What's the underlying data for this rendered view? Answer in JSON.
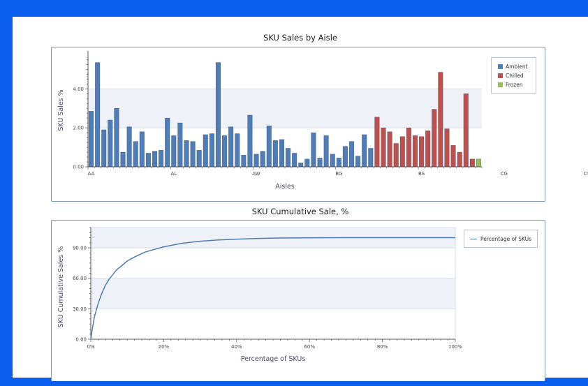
{
  "chart_data": [
    {
      "type": "bar",
      "title": "SKU Sales by Aisle",
      "xlabel": "Aisles",
      "ylabel": "SKU Sales %",
      "ylim": [
        0,
        5.8
      ],
      "y_ticks": [
        0,
        2,
        4
      ],
      "y_tick_labels": [
        "0.00",
        "2.00",
        "4.00"
      ],
      "x_tick_labels": [
        "AA",
        "AL",
        "AW",
        "BG",
        "BS",
        "CG",
        "CS"
      ],
      "x_tick_label_at_bar": [
        0,
        13,
        26,
        39,
        52,
        65,
        78
      ],
      "bands": [
        [
          2,
          4
        ]
      ],
      "legend_position": "right",
      "series": [
        {
          "name": "Ambient",
          "color": "#4f7db8",
          "start": 0,
          "values": [
            2.85,
            5.35,
            1.9,
            2.4,
            3.0,
            0.75,
            2.05,
            1.3,
            1.8,
            0.7,
            0.8,
            0.85,
            2.5,
            1.6,
            2.25,
            1.35,
            1.3,
            0.85,
            1.65,
            1.7,
            5.35,
            1.6,
            2.05,
            1.7,
            0.6,
            2.65,
            0.65,
            0.8,
            2.1,
            1.35,
            1.4,
            0.95,
            0.7,
            0.2,
            0.4,
            1.75,
            0.45,
            1.6,
            0.65,
            0.45,
            1.05,
            1.3,
            0.55,
            1.65,
            0.95
          ]
        },
        {
          "name": "Chilled",
          "color": "#c0504d",
          "start": 45,
          "values": [
            2.55,
            2.0,
            1.8,
            1.2,
            1.55,
            2.0,
            1.6,
            1.55,
            1.85,
            2.95,
            4.85,
            1.95,
            1.1,
            0.75,
            3.75,
            0.4
          ]
        },
        {
          "name": "Frozen",
          "color": "#9bbb59",
          "start": 61,
          "values": [
            0.4
          ]
        }
      ]
    },
    {
      "type": "line",
      "title": "SKU Cumulative Sale, %",
      "xlabel": "Percentage of SKUs",
      "ylabel": "SKU Cumulative Sales %",
      "xlim": [
        0,
        100
      ],
      "ylim": [
        0,
        110
      ],
      "x_ticks": [
        0,
        20,
        40,
        60,
        80,
        100
      ],
      "x_tick_labels": [
        "0%",
        "20%",
        "40%",
        "60%",
        "80%",
        "100%"
      ],
      "y_ticks": [
        0,
        30,
        60,
        90
      ],
      "y_tick_labels": [
        "0.00",
        "30.00",
        "60.00",
        "90.00"
      ],
      "bands": [
        [
          30,
          60
        ],
        [
          90,
          110
        ]
      ],
      "legend_position": "right",
      "series": [
        {
          "name": "Percentage of SKUs",
          "color": "#4e7ab5",
          "x": [
            0,
            0.5,
            1,
            2,
            3,
            4,
            5,
            7,
            10,
            12,
            15,
            20,
            25,
            30,
            35,
            40,
            45,
            50,
            55,
            60,
            70,
            80,
            90,
            100
          ],
          "y": [
            0,
            12,
            22,
            35,
            45,
            53,
            59,
            68,
            77,
            81,
            86,
            91,
            94.5,
            96.5,
            97.8,
            98.6,
            99.2,
            99.6,
            99.8,
            99.9,
            100,
            100,
            100,
            100
          ]
        }
      ]
    }
  ]
}
